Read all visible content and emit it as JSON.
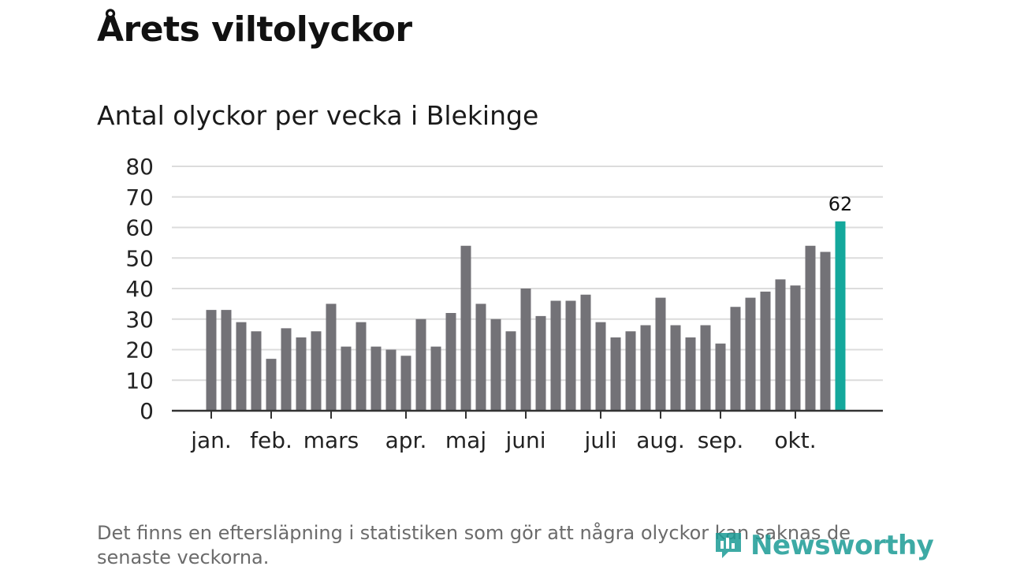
{
  "title": "Årets viltolyckor",
  "subtitle": "Antal olyckor per vecka i Blekinge",
  "footnote": "Det finns en eftersläpning i statistiken som gör att några olyckor kan saknas de senaste veckorna.",
  "logo_text": "Newsworthy",
  "colors": {
    "bar": "#737277",
    "highlight": "#14a89c",
    "grid": "#dcdcdc",
    "axis": "#333333",
    "logo": "#1c9c96"
  },
  "chart_data": {
    "type": "bar",
    "title": "Antal olyckor per vecka i Blekinge",
    "xlabel": "",
    "ylabel": "",
    "ylim": [
      0,
      80
    ],
    "yticks": [
      0,
      10,
      20,
      30,
      40,
      50,
      60,
      70,
      80
    ],
    "grid": true,
    "values": [
      33,
      33,
      29,
      26,
      17,
      27,
      24,
      26,
      35,
      21,
      29,
      21,
      20,
      18,
      30,
      21,
      32,
      54,
      35,
      30,
      26,
      40,
      31,
      36,
      36,
      38,
      29,
      24,
      26,
      28,
      37,
      28,
      24,
      28,
      22,
      34,
      37,
      39,
      43,
      41,
      54,
      52,
      62
    ],
    "highlight_index": 42,
    "highlight_label": "62",
    "month_ticks": [
      {
        "label": "jan.",
        "bar_index": 0
      },
      {
        "label": "feb.",
        "bar_index": 4
      },
      {
        "label": "mars",
        "bar_index": 8
      },
      {
        "label": "apr.",
        "bar_index": 13
      },
      {
        "label": "maj",
        "bar_index": 17
      },
      {
        "label": "juni",
        "bar_index": 21
      },
      {
        "label": "juli",
        "bar_index": 26
      },
      {
        "label": "aug.",
        "bar_index": 30
      },
      {
        "label": "sep.",
        "bar_index": 34
      },
      {
        "label": "okt.",
        "bar_index": 39
      }
    ]
  }
}
